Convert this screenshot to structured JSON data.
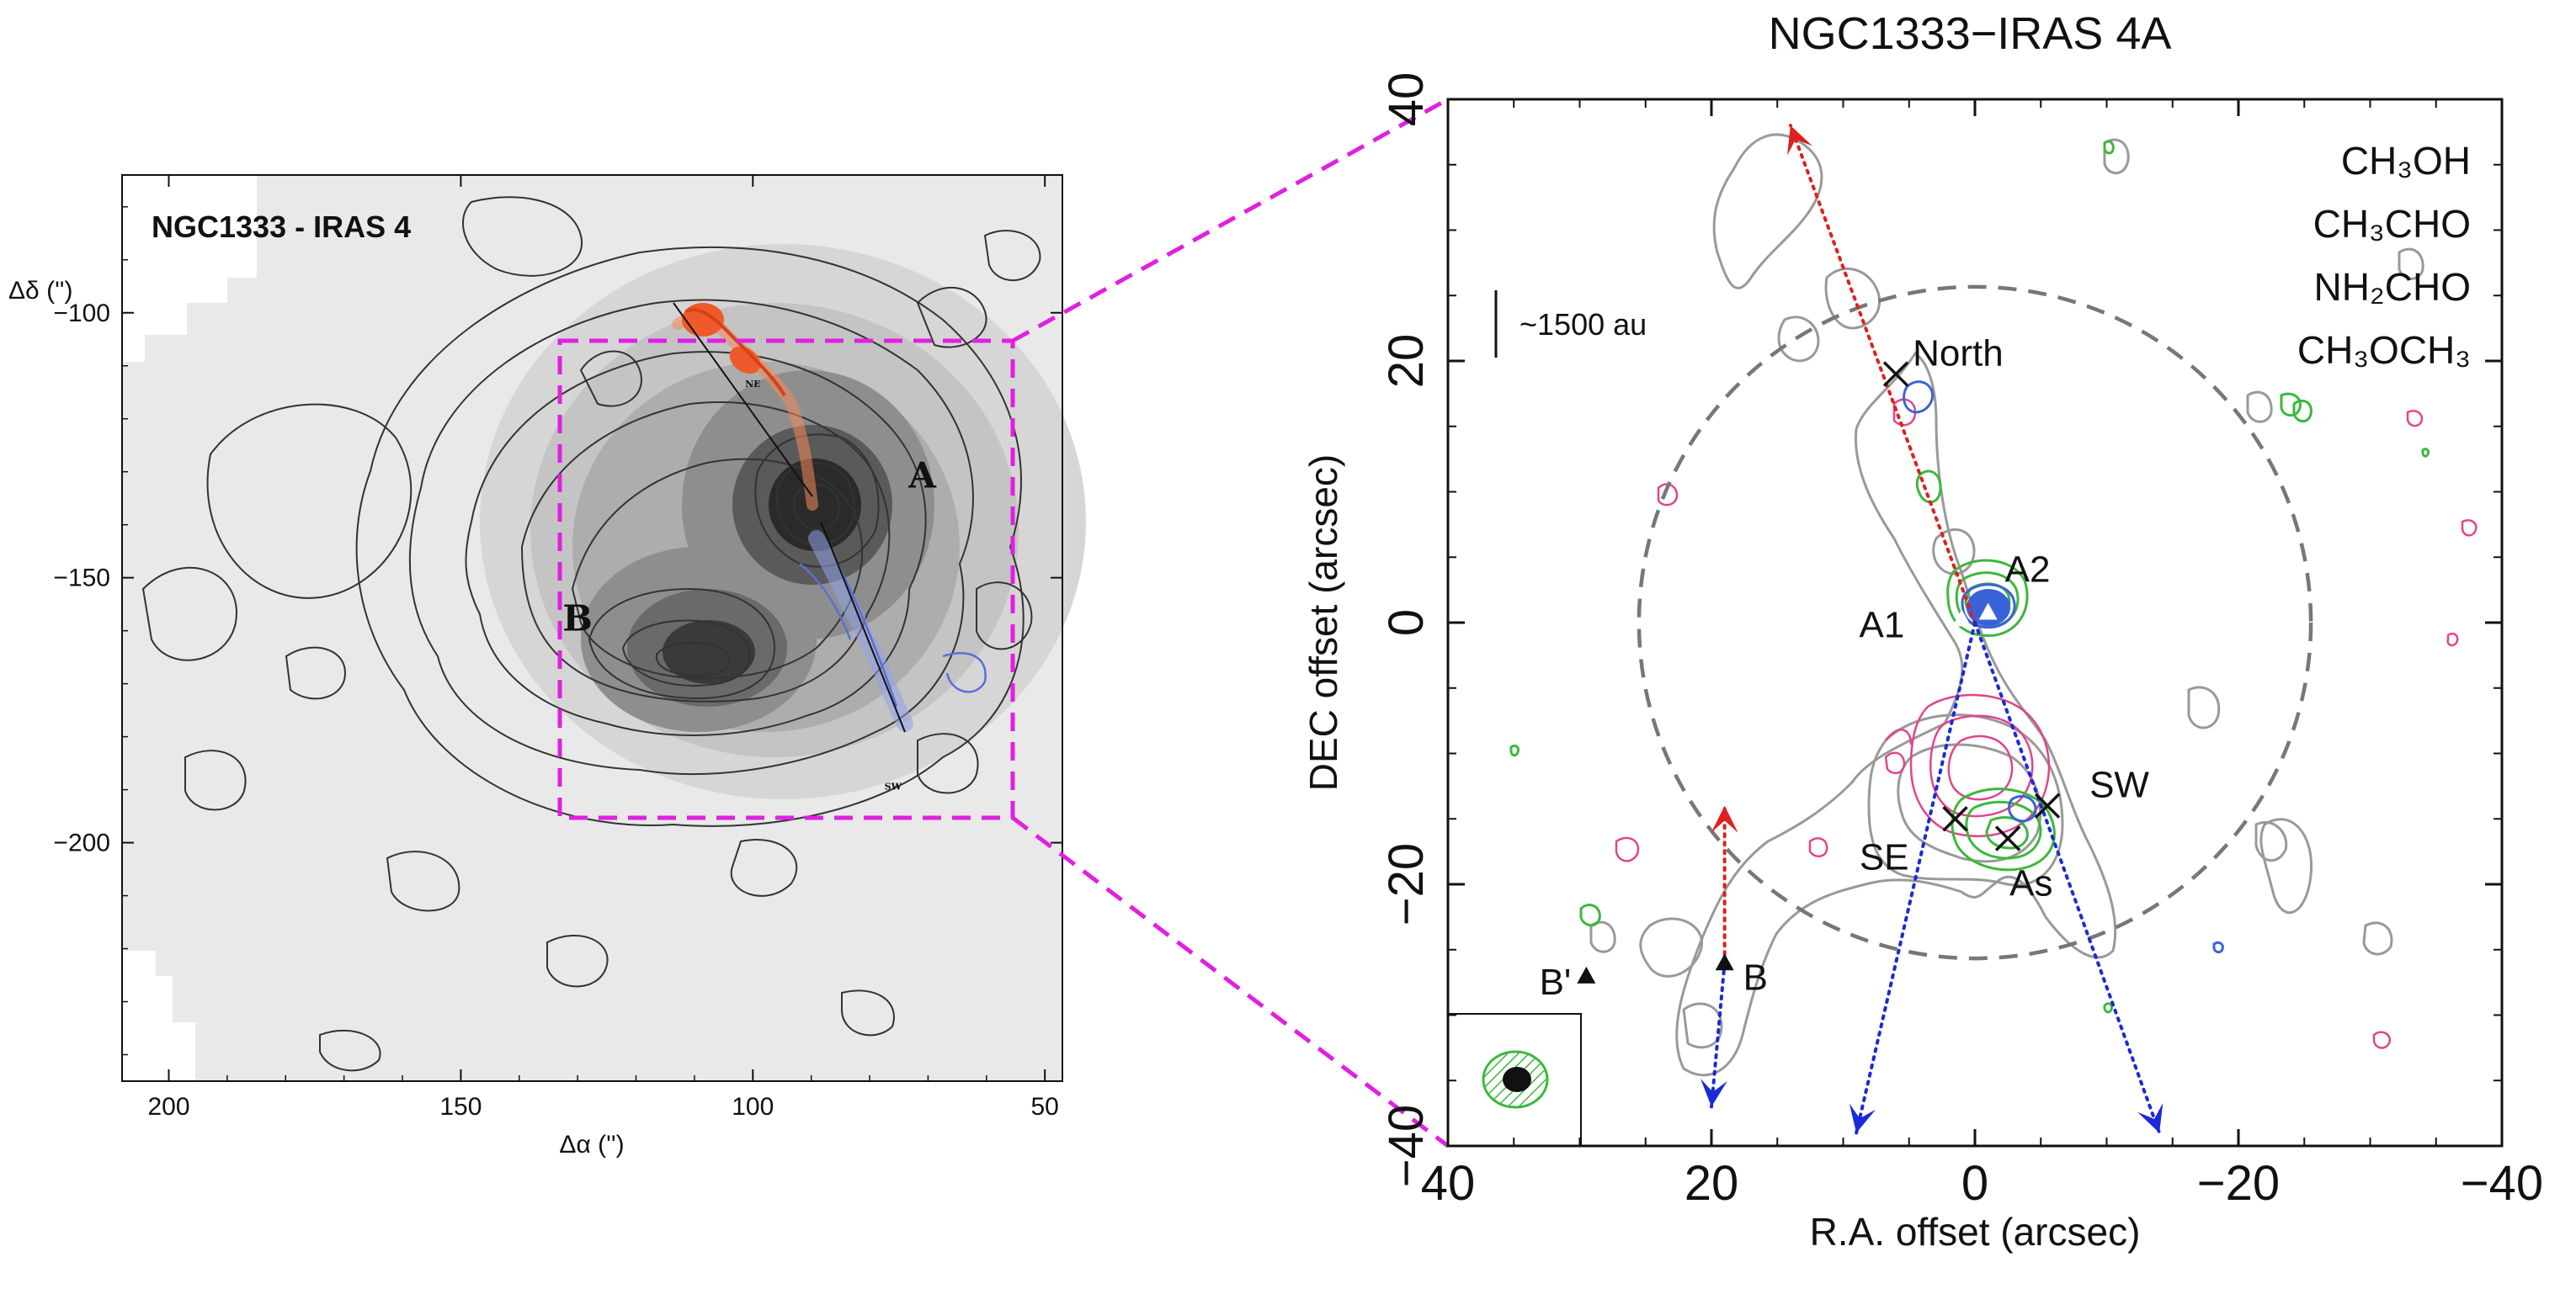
{
  "colors": {
    "ch3oh": "#999999",
    "ch3cho": "#e0458a",
    "nh2cho": "#3cb83c",
    "ch3och3": "#3a62d8",
    "zoom_box": "#e020e0",
    "outflow_red": "#dd2020",
    "outflow_blue": "#1a2ad8",
    "greyscale_peak": "#222222",
    "greyscale_bg": "#e6e6e6"
  },
  "chart_data": [
    {
      "type": "heatmap",
      "panel": "left",
      "title": "NGC1333 - IRAS 4",
      "xlabel": "Δα ('')",
      "ylabel": "Δδ ('')",
      "xlim": [
        208,
        47
      ],
      "ylim": [
        -245,
        -74
      ],
      "x_ticks": [
        200,
        150,
        100,
        50
      ],
      "y_ticks": [
        -100,
        -150,
        -200
      ],
      "x_tick_labels": [
        "200",
        "150",
        "100",
        "50"
      ],
      "y_tick_labels": [
        "−100",
        "−150",
        "−200"
      ],
      "sources": [
        {
          "label": "A",
          "x": 90,
          "y": -150
        },
        {
          "label": "B",
          "x": 109,
          "y": -172
        }
      ],
      "source_text": [
        {
          "text": "A",
          "x": 71,
          "y": -133
        },
        {
          "text": "B",
          "x": 130,
          "y": -160
        }
      ],
      "outflow_labels": [
        {
          "text": "NE",
          "x": 100,
          "y": -114
        },
        {
          "text": "SW",
          "x": 76,
          "y": -190
        }
      ],
      "zoom_box": {
        "x": [
          133,
          56
        ],
        "y": [
          -119,
          -200
        ]
      }
    },
    {
      "type": "scatter",
      "panel": "right",
      "title": "NGC1333−IRAS 4A",
      "xlabel": "R.A. offset (arcsec)",
      "ylabel": "DEC offset (arcsec)",
      "xlim": [
        40,
        -40
      ],
      "ylim": [
        -40,
        40
      ],
      "x_ticks": [
        40,
        20,
        0,
        -20,
        -40
      ],
      "y_ticks": [
        -40,
        -20,
        0,
        20,
        40
      ],
      "x_tick_labels": [
        "40",
        "20",
        "0",
        "−20",
        "−40"
      ],
      "y_tick_labels": [
        "−40",
        "−20",
        "0",
        "20",
        "40"
      ],
      "legend_position": "top-right",
      "series": [
        {
          "name": "CH₃OH",
          "color": "#999999"
        },
        {
          "name": "CH₃CHO",
          "color": "#e0458a"
        },
        {
          "name": "NH₂CHO",
          "color": "#3cb83c"
        },
        {
          "name": "CH₃OCH₃",
          "color": "#3a62d8"
        }
      ],
      "scale_bar": "~1500 au",
      "primary_beam_circle": {
        "x": 0,
        "y": 0,
        "radius": 25.5
      },
      "continuum_sources": [
        {
          "label": "A1",
          "x": 1.0,
          "y": 0.3
        },
        {
          "label": "A2",
          "x": -1.0,
          "y": 0.8
        },
        {
          "label": "B",
          "x": 19,
          "y": -26
        },
        {
          "label": "B'",
          "x": 29.5,
          "y": -27
        }
      ],
      "cross_markers": [
        {
          "label": "North",
          "x": 6,
          "y": 19
        },
        {
          "label": "SE",
          "x": 1.5,
          "y": -15
        },
        {
          "label": "SW",
          "x": -5.5,
          "y": -14
        },
        {
          "label": "As",
          "x": -2.5,
          "y": -16.5
        }
      ],
      "outflow_arrows": [
        {
          "color": "red",
          "from": [
            0,
            0
          ],
          "to": [
            14,
            38
          ]
        },
        {
          "color": "blue",
          "from": [
            0,
            0
          ],
          "to": [
            9,
            -39
          ]
        },
        {
          "color": "blue",
          "from": [
            0,
            0
          ],
          "to": [
            -14,
            -39
          ]
        },
        {
          "color": "red",
          "from": [
            19,
            -26
          ],
          "to": [
            19,
            -14
          ]
        },
        {
          "color": "blue",
          "from": [
            19,
            -26
          ],
          "to": [
            20,
            -37
          ]
        }
      ]
    }
  ]
}
